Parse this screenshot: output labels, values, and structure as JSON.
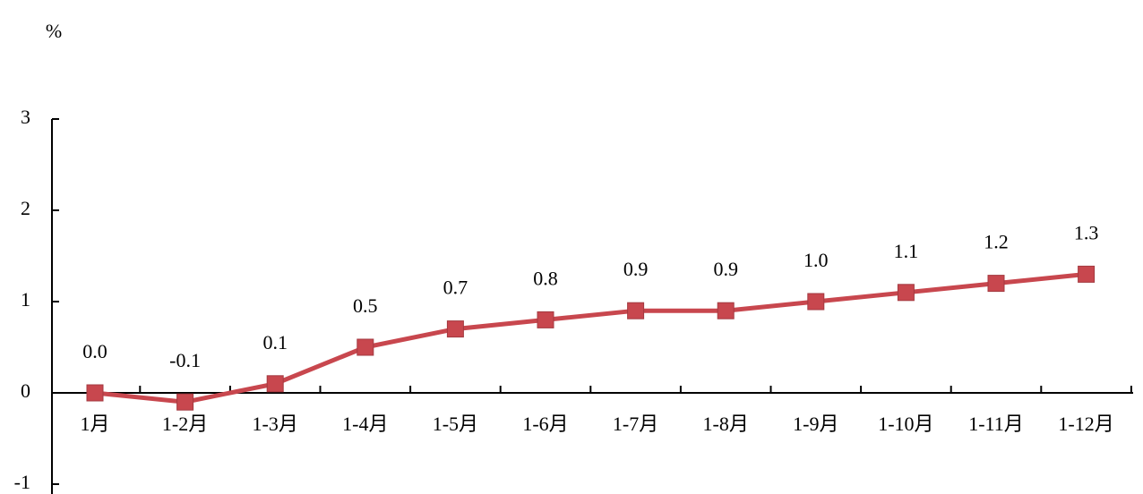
{
  "chart_data": {
    "type": "line",
    "y_label": "%",
    "categories": [
      "1月",
      "1-2月",
      "1-3月",
      "1-4月",
      "1-5月",
      "1-6月",
      "1-7月",
      "1-8月",
      "1-9月",
      "1-10月",
      "1-11月",
      "1-12月"
    ],
    "series": [
      {
        "color": "#c8474e",
        "values": [
          0.0,
          -0.1,
          0.1,
          0.5,
          0.7,
          0.8,
          0.9,
          0.9,
          1.0,
          1.1,
          1.2,
          1.3
        ],
        "value_labels": [
          "0.0",
          "-0.1",
          "0.1",
          "0.5",
          "0.7",
          "0.8",
          "0.9",
          "0.9",
          "1.0",
          "1.1",
          "1.2",
          "1.3"
        ]
      }
    ],
    "ylim": [
      -1,
      3
    ],
    "yticks": [
      -1,
      0,
      1,
      2,
      3
    ],
    "grid": false
  }
}
